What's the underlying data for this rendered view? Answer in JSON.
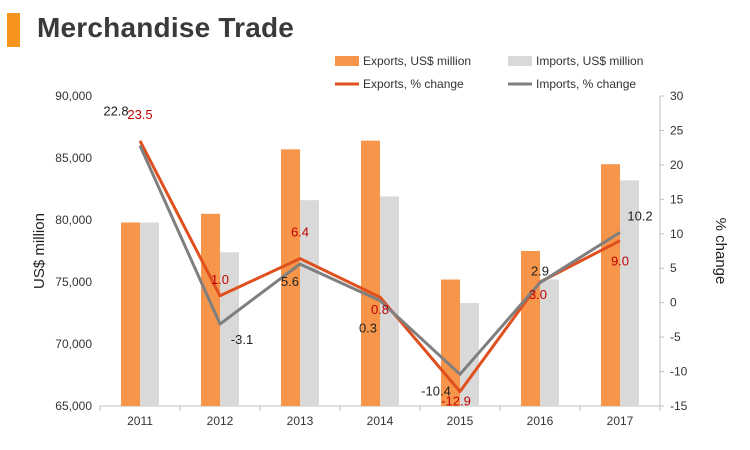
{
  "header": {
    "title": "Merchandise Trade"
  },
  "chart_data": {
    "type": "bar",
    "categories": [
      "2011",
      "2012",
      "2013",
      "2014",
      "2015",
      "2016",
      "2017"
    ],
    "ylabel": "US$ million",
    "y2label": "% change",
    "ylim": [
      65000,
      90000
    ],
    "y2lim": [
      -15,
      30
    ],
    "yticks": [
      "65,000",
      "70,000",
      "75,000",
      "80,000",
      "85,000",
      "90,000"
    ],
    "y2ticks": [
      "-15",
      "-10",
      "-5",
      "0",
      "5",
      "10",
      "15",
      "20",
      "25",
      "30"
    ],
    "legend_position": "top",
    "series": [
      {
        "name": "Exports, US$ million",
        "type": "bar",
        "axis": "left",
        "color": "#f7964a",
        "values": [
          79800,
          80500,
          85700,
          86400,
          75200,
          77500,
          84500
        ]
      },
      {
        "name": "Imports, US$ million",
        "type": "bar",
        "axis": "left",
        "color": "#d9d9d9",
        "values": [
          79800,
          77400,
          81600,
          81900,
          73300,
          75200,
          83200
        ]
      },
      {
        "name": "Exports, % change",
        "type": "line",
        "axis": "right",
        "color": "#e0501f",
        "label_color": "#c00000",
        "values": [
          23.5,
          1.0,
          6.4,
          0.8,
          -12.9,
          3.0,
          9.0
        ],
        "labels": [
          "23.5",
          "1.0",
          "6.4",
          "0.8",
          "-12.9",
          "3.0",
          "9.0"
        ]
      },
      {
        "name": "Imports, % change",
        "type": "line",
        "axis": "right",
        "color": "#7f7f7f",
        "label_color": "#222222",
        "values": [
          22.8,
          -3.1,
          5.6,
          0.3,
          -10.4,
          2.9,
          10.2
        ],
        "labels": [
          "22.8",
          "-3.1",
          "5.6",
          "0.3",
          "-10.4",
          "2.9",
          "10.2"
        ]
      }
    ]
  }
}
